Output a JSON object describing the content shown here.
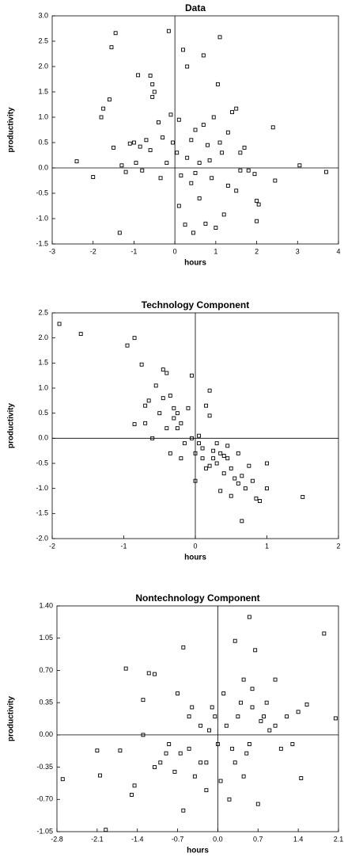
{
  "chart_data": [
    {
      "type": "scatter",
      "title": "Data",
      "x_label": "hours",
      "y_label": "productivity",
      "color": "#000000",
      "zero_lines": true,
      "xlim": [
        -3,
        4
      ],
      "xticks": [
        -3,
        -2,
        -1,
        0,
        1,
        2,
        3,
        4
      ],
      "ylim": [
        -1.5,
        3
      ],
      "yticks": [
        {
          "value": 3,
          "label": "3.0"
        },
        2.5,
        {
          "value": 2,
          "label": "2.0"
        },
        1.5,
        {
          "value": 1,
          "label": "1.0"
        },
        0.5,
        {
          "value": 0,
          "label": "0.0"
        },
        -0.5,
        {
          "value": -1,
          "label": "-1.0"
        },
        -1.5
      ],
      "x": [
        -2.4,
        -2.0,
        -1.8,
        -1.75,
        -1.6,
        -1.55,
        -1.45,
        -1.5,
        -1.35,
        -1.2,
        -1.1,
        -1.0,
        -0.9,
        -0.95,
        -0.8,
        -0.7,
        -0.6,
        -0.55,
        -0.55,
        -0.5,
        -0.4,
        -0.3,
        -0.2,
        -0.15,
        -0.1,
        -0.05,
        0.05,
        0.1,
        0.1,
        0.2,
        0.25,
        0.3,
        0.3,
        0.4,
        0.45,
        0.5,
        0.6,
        0.7,
        0.75,
        0.8,
        0.9,
        0.95,
        1.0,
        1.05,
        1.1,
        1.15,
        1.2,
        1.3,
        1.4,
        1.5,
        1.5,
        1.6,
        1.7,
        1.8,
        1.95,
        2.0,
        2.0,
        2.05,
        2.4,
        2.45,
        3.05,
        3.7,
        -1.3,
        -0.85,
        -0.35,
        0.6,
        1.1,
        0.4,
        0.85,
        1.3,
        -0.6,
        0.15,
        0.5,
        0.7,
        1.6
      ],
      "values": [
        0.13,
        -0.18,
        1.0,
        1.17,
        1.35,
        2.38,
        2.66,
        0.4,
        -1.28,
        -0.08,
        0.48,
        0.5,
        1.83,
        0.1,
        -0.05,
        0.55,
        1.82,
        1.65,
        1.4,
        1.5,
        0.9,
        0.6,
        0.1,
        2.7,
        1.05,
        0.5,
        0.3,
        -0.75,
        0.95,
        2.33,
        -1.12,
        0.2,
        2.0,
        -0.3,
        -1.28,
        0.75,
        0.1,
        2.22,
        -1.1,
        0.45,
        -0.2,
        1.0,
        -1.18,
        1.65,
        2.58,
        0.3,
        -0.92,
        0.7,
        1.1,
        1.17,
        -0.45,
        0.3,
        0.4,
        -0.05,
        -0.12,
        -0.65,
        -1.05,
        -0.72,
        0.8,
        -0.25,
        0.05,
        -0.08,
        0.05,
        0.42,
        -0.2,
        -0.6,
        0.5,
        0.55,
        0.15,
        -0.35,
        0.35,
        -0.15,
        -0.1,
        0.85,
        -0.05
      ]
    },
    {
      "type": "scatter",
      "title": "Technology Component",
      "x_label": "hours",
      "y_label": "productivity",
      "color": "#000000",
      "zero_lines": true,
      "xlim": [
        -2,
        2
      ],
      "xticks": [
        -2,
        -1,
        0,
        1,
        2
      ],
      "ylim": [
        -2,
        2.5
      ],
      "yticks": [
        2.5,
        {
          "value": 2,
          "label": "2.0"
        },
        1.5,
        {
          "value": 1,
          "label": "1.0"
        },
        0.5,
        {
          "value": 0,
          "label": "0.0"
        },
        -0.5,
        {
          "value": -1,
          "label": "-1.0"
        },
        -1.5,
        {
          "value": -2,
          "label": "-2.0"
        }
      ],
      "x": [
        -1.9,
        -1.6,
        -0.95,
        -0.85,
        -0.75,
        -0.85,
        -0.7,
        -0.65,
        -0.55,
        -0.45,
        -0.4,
        -0.35,
        -0.5,
        -0.3,
        -0.25,
        -0.2,
        -0.15,
        -0.1,
        -0.05,
        -0.05,
        0.0,
        0.05,
        0.1,
        0.15,
        0.2,
        0.25,
        0.2,
        0.3,
        0.35,
        0.4,
        0.45,
        0.5,
        0.55,
        0.6,
        0.65,
        0.7,
        0.75,
        0.8,
        0.85,
        0.9,
        1.0,
        1.0,
        0.65,
        0.5,
        1.5,
        -0.6,
        -0.4,
        -0.3,
        0.1,
        0.3,
        0.0,
        -0.2,
        0.35,
        0.15,
        -0.45,
        -0.25,
        0.05,
        0.45,
        0.25,
        -0.35,
        -0.7,
        0.6,
        0.2,
        0.4
      ],
      "values": [
        2.28,
        2.08,
        1.85,
        2.0,
        1.47,
        0.28,
        0.65,
        0.75,
        1.05,
        1.37,
        1.3,
        0.85,
        0.5,
        0.4,
        0.2,
        0.3,
        -0.1,
        0.6,
        1.25,
        0.0,
        -0.3,
        -0.1,
        -0.2,
        0.65,
        0.45,
        -0.4,
        0.95,
        -0.5,
        -0.3,
        -0.7,
        -0.15,
        -0.6,
        -0.8,
        -0.3,
        -0.75,
        -1.0,
        -0.55,
        -0.85,
        -1.2,
        -1.25,
        -0.5,
        -1.0,
        -1.65,
        -1.15,
        -1.17,
        0.0,
        0.2,
        0.6,
        -0.4,
        -0.1,
        -0.85,
        -0.4,
        -1.05,
        -0.6,
        0.8,
        0.5,
        0.05,
        -0.4,
        -0.25,
        -0.3,
        0.3,
        -0.9,
        -0.55,
        -0.35
      ]
    },
    {
      "type": "scatter",
      "title": "Nontechnology Component",
      "x_label": "hours",
      "y_label": "productivity",
      "color": "#000000",
      "zero_lines": true,
      "xlim": [
        -2.8,
        2.1
      ],
      "xticks": [
        -2.8,
        -2.1,
        -1.4,
        -0.7,
        {
          "value": 0,
          "label": "0.0"
        },
        0.7,
        1.4,
        2.1
      ],
      "ylim": [
        -1.05,
        1.4
      ],
      "yticks": [
        {
          "value": 1.4,
          "label": "1.40"
        },
        1.05,
        {
          "value": 0.7,
          "label": "0.70"
        },
        0.35,
        {
          "value": 0,
          "label": "0.00"
        },
        -0.35,
        {
          "value": -0.7,
          "label": "-0.70"
        },
        -1.05
      ],
      "x": [
        -2.7,
        -2.1,
        -2.05,
        -1.95,
        -1.7,
        -1.6,
        -1.5,
        -1.45,
        -1.3,
        -1.2,
        -1.1,
        -1.0,
        -0.85,
        -0.7,
        -0.6,
        -0.6,
        -0.5,
        -0.4,
        -0.3,
        -0.2,
        -0.1,
        0.0,
        0.1,
        0.2,
        0.3,
        0.35,
        0.45,
        0.5,
        0.55,
        0.6,
        0.65,
        0.7,
        0.8,
        0.9,
        1.0,
        1.1,
        1.2,
        1.4,
        1.45,
        1.55,
        1.85,
        2.05,
        -1.3,
        -0.9,
        -0.75,
        -0.5,
        -0.3,
        -0.15,
        0.15,
        0.3,
        0.4,
        0.55,
        0.75,
        1.0,
        -0.45,
        -0.05,
        0.25,
        0.6,
        -0.65,
        -1.1,
        0.85,
        1.3,
        -0.2,
        0.05,
        0.45
      ],
      "values": [
        -0.48,
        -0.17,
        -0.44,
        -1.03,
        -0.17,
        0.72,
        -0.65,
        -0.55,
        0.38,
        0.67,
        0.66,
        -0.3,
        -0.1,
        0.45,
        0.95,
        -0.82,
        0.2,
        -0.45,
        0.1,
        -0.6,
        0.3,
        -0.1,
        0.45,
        -0.7,
        1.02,
        0.2,
        0.6,
        -0.2,
        1.28,
        0.5,
        0.92,
        -0.75,
        0.2,
        0.05,
        0.6,
        -0.15,
        0.2,
        0.25,
        -0.47,
        0.33,
        1.1,
        0.18,
        0.0,
        -0.2,
        -0.4,
        -0.15,
        -0.3,
        0.05,
        0.1,
        -0.3,
        0.35,
        -0.1,
        0.15,
        0.1,
        0.3,
        0.2,
        -0.15,
        0.3,
        -0.2,
        -0.35,
        0.35,
        -0.1,
        -0.3,
        -0.5,
        -0.45
      ]
    }
  ]
}
